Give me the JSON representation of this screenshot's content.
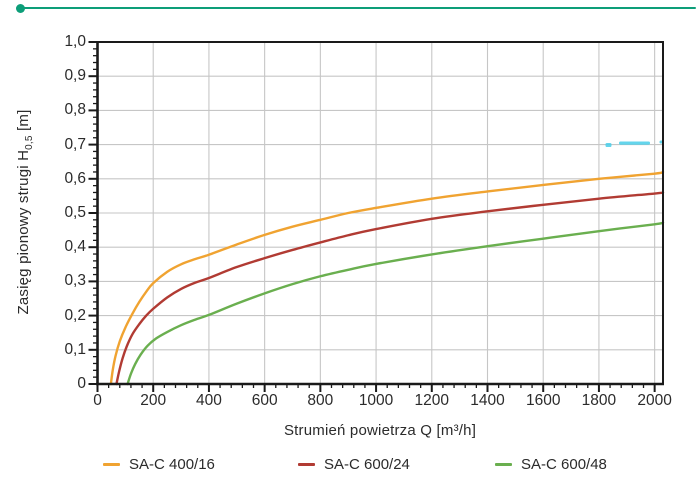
{
  "header": {
    "accent_color": "#0D9E79"
  },
  "chart_data": {
    "type": "line",
    "title": "",
    "xlabel": "Strumień powietrza Q [m³/h]",
    "ylabel_pre": "Zasięg pionowy strugi H",
    "ylabel_sub": "0,5",
    "ylabel_post": " [m]",
    "xlim": [
      0,
      2030
    ],
    "ylim": [
      0,
      1
    ],
    "grid": "major-both",
    "legend_position": "bottom",
    "x_major_ticks": [
      0,
      200,
      400,
      600,
      800,
      1000,
      1200,
      1400,
      1600,
      1800,
      2000
    ],
    "x_tick_labels": [
      "0",
      "200",
      "400",
      "600",
      "800",
      "1000",
      "1200",
      "1400",
      "1600",
      "1800",
      "2000"
    ],
    "x_minor_step": 40,
    "y_major_ticks": [
      0,
      0.1,
      0.2,
      0.3,
      0.4,
      0.5,
      0.6,
      0.7,
      0.8,
      0.9,
      1.0
    ],
    "y_tick_labels": [
      "0",
      "0,1",
      "0,2",
      "0,3",
      "0,4",
      "0,5",
      "0,6",
      "0,7",
      "0,8",
      "0,9",
      "1,0"
    ],
    "y_minor_step": 0.02,
    "colors": {
      "grid": "#C6C6C6",
      "axis": "#1A1A1A",
      "text": "#2B2B2B",
      "artifact_cyan": "#49CEE9"
    },
    "series": [
      {
        "name": "SA-C 400/16",
        "color": "#F0A331",
        "x": [
          48,
          55,
          65,
          80,
          100,
          125,
          150,
          175,
          200,
          250,
          300,
          350,
          400,
          500,
          600,
          700,
          800,
          900,
          1000,
          1200,
          1400,
          1600,
          1800,
          2000,
          2030
        ],
        "y": [
          0,
          0.042,
          0.083,
          0.125,
          0.165,
          0.205,
          0.24,
          0.27,
          0.295,
          0.328,
          0.35,
          0.365,
          0.378,
          0.408,
          0.436,
          0.46,
          0.48,
          0.5,
          0.515,
          0.542,
          0.563,
          0.582,
          0.6,
          0.615,
          0.62
        ]
      },
      {
        "name": "SA-C 600/24",
        "color": "#B13B33",
        "x": [
          68,
          78,
          90,
          105,
          125,
          150,
          175,
          200,
          250,
          300,
          350,
          400,
          500,
          600,
          700,
          800,
          900,
          1000,
          1200,
          1400,
          1600,
          1800,
          2000,
          2030
        ],
        "y": [
          0,
          0.038,
          0.075,
          0.11,
          0.145,
          0.175,
          0.2,
          0.22,
          0.253,
          0.278,
          0.296,
          0.31,
          0.342,
          0.368,
          0.392,
          0.414,
          0.435,
          0.453,
          0.483,
          0.505,
          0.524,
          0.542,
          0.557,
          0.56
        ]
      },
      {
        "name": "SA-C 600/48",
        "color": "#6AAF4F",
        "x": [
          108,
          120,
          135,
          155,
          180,
          210,
          250,
          300,
          350,
          400,
          500,
          600,
          700,
          800,
          900,
          1000,
          1200,
          1400,
          1600,
          1800,
          2000,
          2030
        ],
        "y": [
          0,
          0.03,
          0.058,
          0.086,
          0.112,
          0.133,
          0.152,
          0.172,
          0.188,
          0.202,
          0.235,
          0.265,
          0.292,
          0.315,
          0.334,
          0.351,
          0.379,
          0.403,
          0.425,
          0.447,
          0.467,
          0.472
        ]
      }
    ]
  }
}
